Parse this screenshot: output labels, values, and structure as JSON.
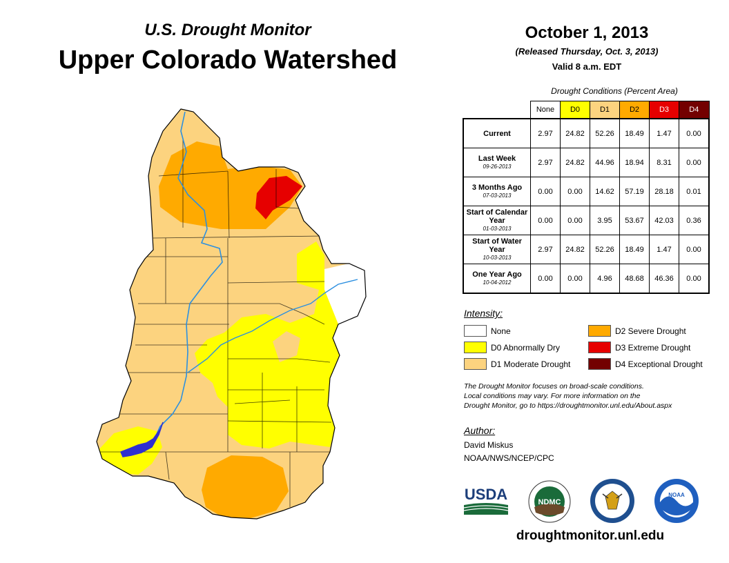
{
  "header": {
    "subtitle": "U.S. Drought Monitor",
    "title": "Upper Colorado Watershed",
    "date": "October 1, 2013",
    "released": "(Released Thursday, Oct. 3, 2013)",
    "valid": "Valid 8 a.m. EDT"
  },
  "conditions": {
    "caption": "Drought Conditions (Percent Area)",
    "columns": [
      {
        "label": "None",
        "color": "#ffffff"
      },
      {
        "label": "D0",
        "color": "#ffff00"
      },
      {
        "label": "D1",
        "color": "#fcd37f"
      },
      {
        "label": "D2",
        "color": "#ffaa00"
      },
      {
        "label": "D3",
        "color": "#e60000"
      },
      {
        "label": "D4",
        "color": "#730000"
      }
    ],
    "rows": [
      {
        "label": "Current",
        "date": "",
        "values": [
          "2.97",
          "24.82",
          "52.26",
          "18.49",
          "1.47",
          "0.00"
        ]
      },
      {
        "label": "Last Week",
        "date": "09-26-2013",
        "values": [
          "2.97",
          "24.82",
          "44.96",
          "18.94",
          "8.31",
          "0.00"
        ]
      },
      {
        "label": "3 Months Ago",
        "date": "07-03-2013",
        "values": [
          "0.00",
          "0.00",
          "14.62",
          "57.19",
          "28.18",
          "0.01"
        ]
      },
      {
        "label": "Start of Calendar Year",
        "date": "01-03-2013",
        "values": [
          "0.00",
          "0.00",
          "3.95",
          "53.67",
          "42.03",
          "0.36"
        ]
      },
      {
        "label": "Start of Water Year",
        "date": "10-03-2013",
        "values": [
          "2.97",
          "24.82",
          "52.26",
          "18.49",
          "1.47",
          "0.00"
        ]
      },
      {
        "label": "One Year Ago",
        "date": "10-04-2012",
        "values": [
          "0.00",
          "0.00",
          "4.96",
          "48.68",
          "46.36",
          "0.00"
        ]
      }
    ]
  },
  "legend": {
    "title": "Intensity:",
    "items": [
      {
        "label": "None",
        "color": "#ffffff"
      },
      {
        "label": "D0 Abnormally Dry",
        "color": "#ffff00"
      },
      {
        "label": "D1 Moderate Drought",
        "color": "#fcd37f"
      },
      {
        "label": "D2 Severe Drought",
        "color": "#ffaa00"
      },
      {
        "label": "D3 Extreme Drought",
        "color": "#e60000"
      },
      {
        "label": "D4 Exceptional Drought",
        "color": "#730000"
      }
    ]
  },
  "note": {
    "line1": "The Drought Monitor focuses on broad-scale conditions.",
    "line2": "Local conditions may vary. For more information on the",
    "line3": "Drought Monitor, go to https://droughtmonitor.unl.edu/About.aspx"
  },
  "author": {
    "title": "Author:",
    "name": "David Miskus",
    "org": "NOAA/NWS/NCEP/CPC"
  },
  "logos": {
    "usda": "USDA",
    "ndmc": "NDMC",
    "noaa": "NOAA"
  },
  "website": "droughtmonitor.unl.edu"
}
